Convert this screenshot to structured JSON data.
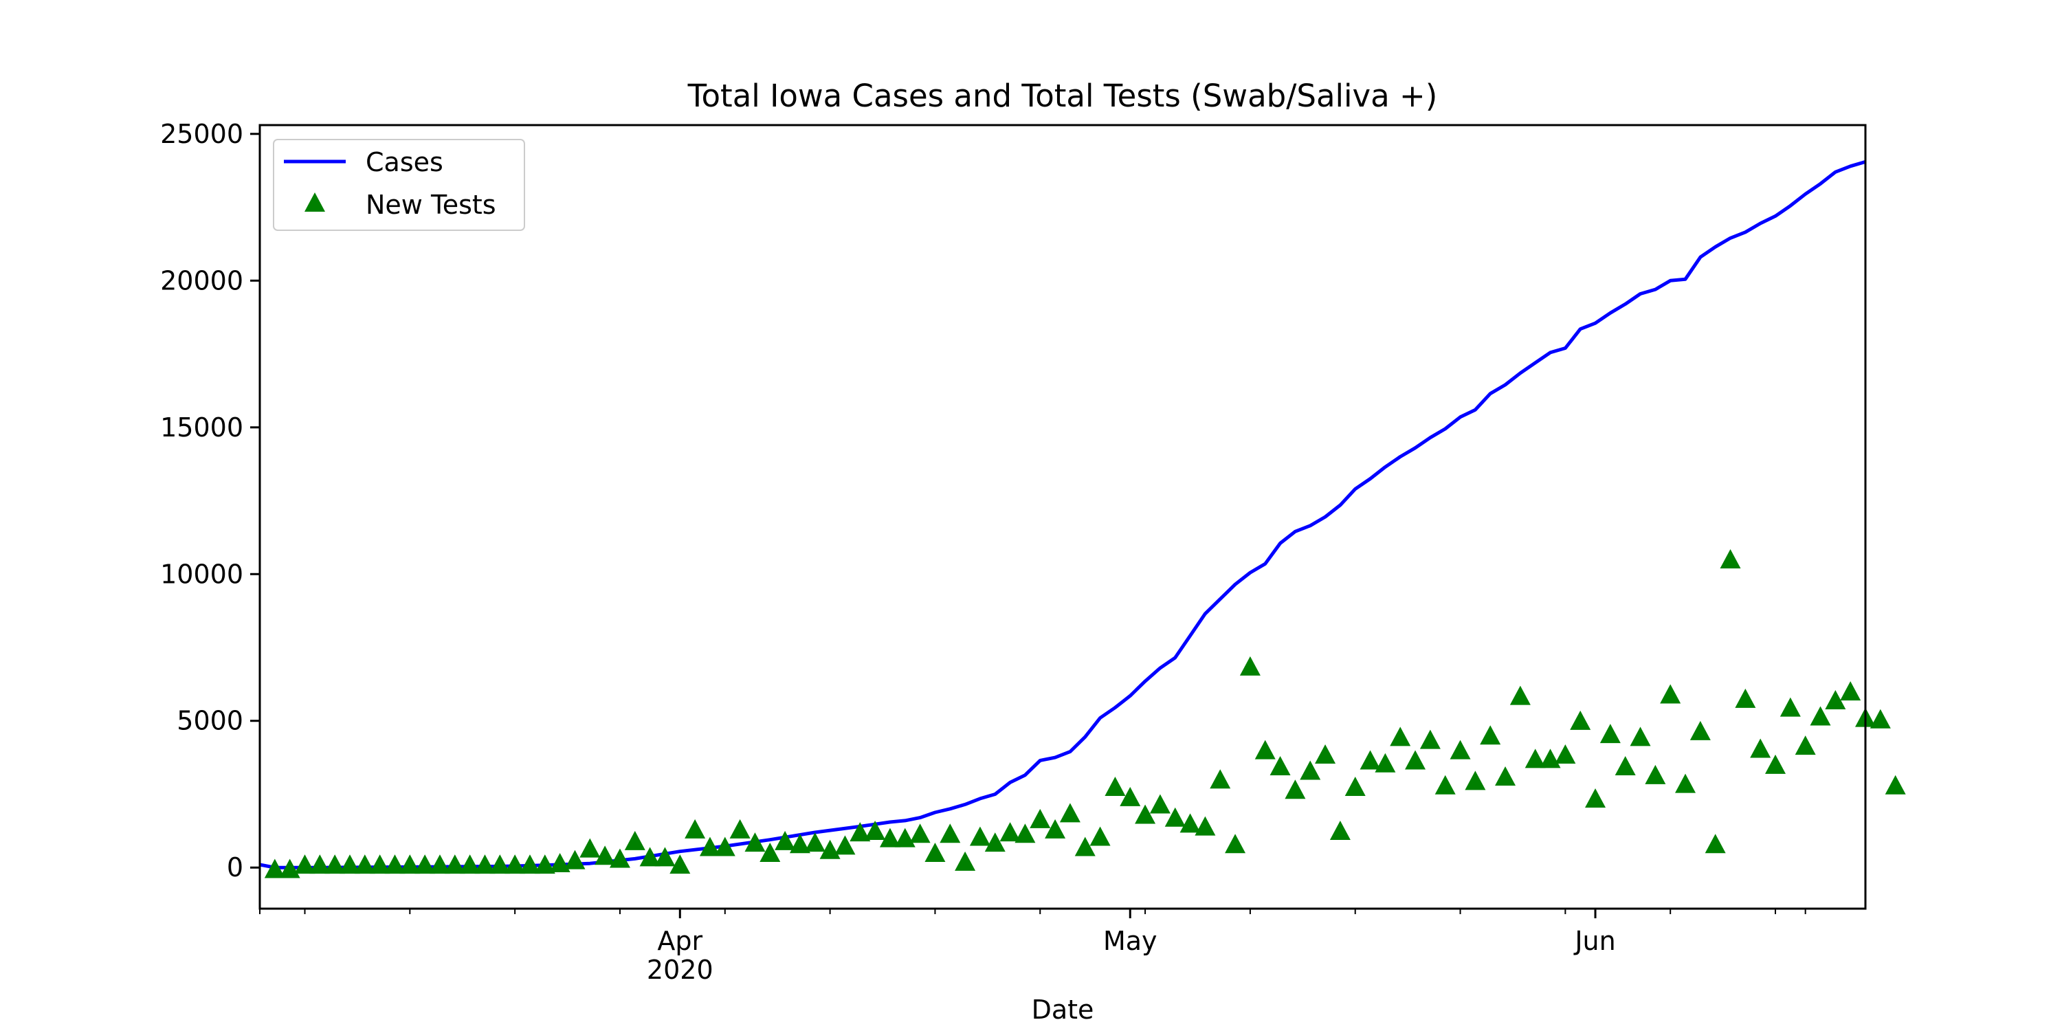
{
  "chart_data": {
    "type": "line",
    "title": "Total Iowa Cases and Total Tests (Swab/Saliva +)",
    "xlabel": "Date",
    "ylabel": "",
    "x_axis": {
      "kind": "date",
      "range": [
        "2020-03-04",
        "2020-06-15"
      ],
      "major_ticks": [
        {
          "date": "2020-04-01",
          "label": "Apr",
          "sublabel": "2020"
        },
        {
          "date": "2020-05-01",
          "label": "May",
          "sublabel": ""
        },
        {
          "date": "2020-06-01",
          "label": "Jun",
          "sublabel": ""
        }
      ],
      "minor_ticks": [
        "2020-03-04",
        "2020-03-07",
        "2020-03-14",
        "2020-03-21",
        "2020-03-28",
        "2020-04-04",
        "2020-04-11",
        "2020-04-18",
        "2020-04-25",
        "2020-05-02",
        "2020-05-09",
        "2020-05-16",
        "2020-05-23",
        "2020-05-30",
        "2020-06-06",
        "2020-06-13",
        "2020-06-15"
      ]
    },
    "ylim": [
      -1400,
      25300
    ],
    "y_ticks": [
      0,
      5000,
      10000,
      15000,
      20000,
      25000
    ],
    "grid": false,
    "legend_position": "top-left",
    "series": [
      {
        "name": "Cases",
        "style": "line",
        "color": "#0000ff",
        "points": [
          [
            "2020-03-04",
            100
          ],
          [
            "2020-03-05",
            0
          ],
          [
            "2020-03-08",
            0
          ],
          [
            "2020-03-11",
            10
          ],
          [
            "2020-03-14",
            20
          ],
          [
            "2020-03-17",
            30
          ],
          [
            "2020-03-20",
            40
          ],
          [
            "2020-03-23",
            80
          ],
          [
            "2020-03-26",
            140
          ],
          [
            "2020-03-29",
            300
          ],
          [
            "2020-04-01",
            550
          ],
          [
            "2020-04-04",
            730
          ],
          [
            "2020-04-07",
            950
          ],
          [
            "2020-04-10",
            1200
          ],
          [
            "2020-04-13",
            1400
          ],
          [
            "2020-04-15",
            1550
          ],
          [
            "2020-04-16",
            1600
          ],
          [
            "2020-04-17",
            1700
          ],
          [
            "2020-04-18",
            1880
          ],
          [
            "2020-04-19",
            2000
          ],
          [
            "2020-04-20",
            2150
          ],
          [
            "2020-04-21",
            2350
          ],
          [
            "2020-04-22",
            2500
          ],
          [
            "2020-04-23",
            2900
          ],
          [
            "2020-04-24",
            3150
          ],
          [
            "2020-04-25",
            3650
          ],
          [
            "2020-04-26",
            3750
          ],
          [
            "2020-04-27",
            3950
          ],
          [
            "2020-04-28",
            4450
          ],
          [
            "2020-04-29",
            5100
          ],
          [
            "2020-04-30",
            5450
          ],
          [
            "2020-05-01",
            5850
          ],
          [
            "2020-05-02",
            6350
          ],
          [
            "2020-05-03",
            6800
          ],
          [
            "2020-05-04",
            7150
          ],
          [
            "2020-05-05",
            7900
          ],
          [
            "2020-05-06",
            8650
          ],
          [
            "2020-05-07",
            9150
          ],
          [
            "2020-05-08",
            9650
          ],
          [
            "2020-05-09",
            10050
          ],
          [
            "2020-05-10",
            10350
          ],
          [
            "2020-05-11",
            11050
          ],
          [
            "2020-05-12",
            11450
          ],
          [
            "2020-05-13",
            11650
          ],
          [
            "2020-05-14",
            11950
          ],
          [
            "2020-05-15",
            12350
          ],
          [
            "2020-05-16",
            12900
          ],
          [
            "2020-05-17",
            13250
          ],
          [
            "2020-05-18",
            13650
          ],
          [
            "2020-05-19",
            14000
          ],
          [
            "2020-05-20",
            14300
          ],
          [
            "2020-05-21",
            14650
          ],
          [
            "2020-05-22",
            14950
          ],
          [
            "2020-05-23",
            15350
          ],
          [
            "2020-05-24",
            15600
          ],
          [
            "2020-05-25",
            16150
          ],
          [
            "2020-05-26",
            16450
          ],
          [
            "2020-05-27",
            16850
          ],
          [
            "2020-05-28",
            17200
          ],
          [
            "2020-05-29",
            17550
          ],
          [
            "2020-05-30",
            17700
          ],
          [
            "2020-05-31",
            18350
          ],
          [
            "2020-06-01",
            18550
          ],
          [
            "2020-06-02",
            18900
          ],
          [
            "2020-06-03",
            19200
          ],
          [
            "2020-06-04",
            19550
          ],
          [
            "2020-06-05",
            19700
          ],
          [
            "2020-06-06",
            20000
          ],
          [
            "2020-06-07",
            20050
          ],
          [
            "2020-06-08",
            20800
          ],
          [
            "2020-06-09",
            21150
          ],
          [
            "2020-06-10",
            21450
          ],
          [
            "2020-06-11",
            21650
          ],
          [
            "2020-06-12",
            21950
          ],
          [
            "2020-06-13",
            22200
          ],
          [
            "2020-06-14",
            22550
          ],
          [
            "2020-06-15",
            22950
          ],
          [
            "2020-06-16",
            23300
          ],
          [
            "2020-06-17",
            23700
          ],
          [
            "2020-06-18",
            23900
          ],
          [
            "2020-06-19",
            24050
          ]
        ]
      },
      {
        "name": "New Tests",
        "style": "marker-triangle",
        "color": "#008000",
        "points": [
          [
            "2020-03-05",
            -100
          ],
          [
            "2020-03-06",
            -100
          ],
          [
            "2020-03-07",
            50
          ],
          [
            "2020-03-08",
            50
          ],
          [
            "2020-03-09",
            50
          ],
          [
            "2020-03-10",
            50
          ],
          [
            "2020-03-11",
            50
          ],
          [
            "2020-03-12",
            50
          ],
          [
            "2020-03-13",
            50
          ],
          [
            "2020-03-14",
            50
          ],
          [
            "2020-03-15",
            50
          ],
          [
            "2020-03-16",
            50
          ],
          [
            "2020-03-17",
            50
          ],
          [
            "2020-03-18",
            50
          ],
          [
            "2020-03-19",
            50
          ],
          [
            "2020-03-20",
            50
          ],
          [
            "2020-03-21",
            50
          ],
          [
            "2020-03-22",
            50
          ],
          [
            "2020-03-23",
            50
          ],
          [
            "2020-03-24",
            100
          ],
          [
            "2020-03-25",
            200
          ],
          [
            "2020-03-26",
            600
          ],
          [
            "2020-03-27",
            350
          ],
          [
            "2020-03-28",
            250
          ],
          [
            "2020-03-29",
            850
          ],
          [
            "2020-03-30",
            300
          ],
          [
            "2020-03-31",
            300
          ],
          [
            "2020-04-01",
            50
          ],
          [
            "2020-04-02",
            1250
          ],
          [
            "2020-04-03",
            650
          ],
          [
            "2020-04-04",
            650
          ],
          [
            "2020-04-05",
            1250
          ],
          [
            "2020-04-06",
            800
          ],
          [
            "2020-04-07",
            450
          ],
          [
            "2020-04-08",
            850
          ],
          [
            "2020-04-09",
            750
          ],
          [
            "2020-04-10",
            800
          ],
          [
            "2020-04-11",
            550
          ],
          [
            "2020-04-12",
            700
          ],
          [
            "2020-04-13",
            1150
          ],
          [
            "2020-04-14",
            1200
          ],
          [
            "2020-04-15",
            950
          ],
          [
            "2020-04-16",
            950
          ],
          [
            "2020-04-17",
            1100
          ],
          [
            "2020-04-18",
            450
          ],
          [
            "2020-04-19",
            1100
          ],
          [
            "2020-04-20",
            150
          ],
          [
            "2020-04-21",
            1000
          ],
          [
            "2020-04-22",
            800
          ],
          [
            "2020-04-23",
            1150
          ],
          [
            "2020-04-24",
            1100
          ],
          [
            "2020-04-25",
            1600
          ],
          [
            "2020-04-26",
            1250
          ],
          [
            "2020-04-27",
            1800
          ],
          [
            "2020-04-28",
            650
          ],
          [
            "2020-04-29",
            1000
          ],
          [
            "2020-04-30",
            2700
          ],
          [
            "2020-05-01",
            2350
          ],
          [
            "2020-05-02",
            1750
          ],
          [
            "2020-05-03",
            2100
          ],
          [
            "2020-05-04",
            1650
          ],
          [
            "2020-05-05",
            1450
          ],
          [
            "2020-05-06",
            1350
          ],
          [
            "2020-05-07",
            2950
          ],
          [
            "2020-05-08",
            750
          ],
          [
            "2020-05-09",
            6800
          ],
          [
            "2020-05-10",
            3950
          ],
          [
            "2020-05-11",
            3400
          ],
          [
            "2020-05-12",
            2600
          ],
          [
            "2020-05-13",
            3250
          ],
          [
            "2020-05-14",
            3800
          ],
          [
            "2020-05-15",
            1200
          ],
          [
            "2020-05-16",
            2700
          ],
          [
            "2020-05-17",
            3600
          ],
          [
            "2020-05-18",
            3500
          ],
          [
            "2020-05-19",
            4400
          ],
          [
            "2020-05-20",
            3600
          ],
          [
            "2020-05-21",
            4300
          ],
          [
            "2020-05-22",
            2750
          ],
          [
            "2020-05-23",
            3950
          ],
          [
            "2020-05-24",
            2900
          ],
          [
            "2020-05-25",
            4450
          ],
          [
            "2020-05-26",
            3050
          ],
          [
            "2020-05-27",
            5800
          ],
          [
            "2020-05-28",
            3650
          ],
          [
            "2020-05-29",
            3650
          ],
          [
            "2020-05-30",
            3800
          ],
          [
            "2020-05-31",
            4950
          ],
          [
            "2020-06-01",
            2300
          ],
          [
            "2020-06-02",
            4500
          ],
          [
            "2020-06-03",
            3400
          ],
          [
            "2020-06-04",
            4400
          ],
          [
            "2020-06-05",
            3100
          ],
          [
            "2020-06-06",
            5850
          ],
          [
            "2020-06-07",
            2800
          ],
          [
            "2020-06-08",
            4600
          ],
          [
            "2020-06-09",
            750
          ],
          [
            "2020-06-10",
            10450
          ],
          [
            "2020-06-11",
            5700
          ],
          [
            "2020-06-12",
            4000
          ],
          [
            "2020-06-13",
            3450
          ],
          [
            "2020-06-14",
            5400
          ],
          [
            "2020-06-15",
            4100
          ],
          [
            "2020-06-16",
            5100
          ],
          [
            "2020-06-17",
            5650
          ],
          [
            "2020-06-18",
            5950
          ],
          [
            "2020-06-19",
            5050
          ],
          [
            "2020-06-20",
            5000
          ],
          [
            "2020-06-21",
            2750
          ]
        ]
      }
    ]
  }
}
